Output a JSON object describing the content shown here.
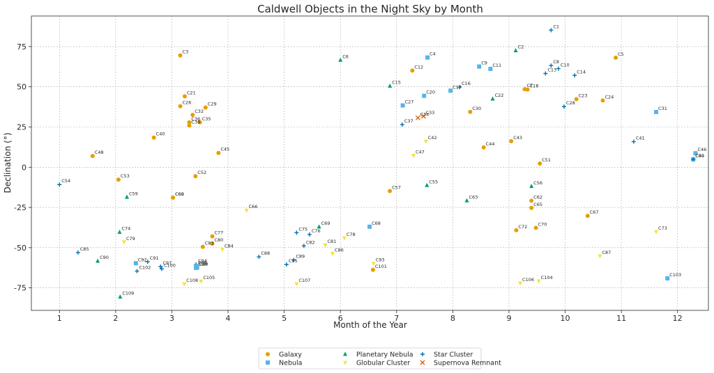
{
  "chart_data": {
    "type": "scatter",
    "title": "Caldwell Objects in the Night Sky by Month",
    "xlabel": "Month of the Year",
    "ylabel": "Declination (°)",
    "xlim": [
      0.5,
      12.55
    ],
    "ylim": [
      -89,
      94
    ],
    "xticks": [
      1,
      2,
      3,
      4,
      5,
      6,
      7,
      8,
      9,
      10,
      11,
      12
    ],
    "yticks": [
      -75,
      -50,
      -25,
      0,
      25,
      50,
      75
    ],
    "grid": true,
    "legend_position": "bottom-center",
    "categories": [
      {
        "name": "Galaxy",
        "marker": "circle",
        "color": "#E69F00"
      },
      {
        "name": "Nebula",
        "marker": "square",
        "color": "#56B4E9"
      },
      {
        "name": "Planetary Nebula",
        "marker": "triangle-up",
        "color": "#009E73"
      },
      {
        "name": "Globular Cluster",
        "marker": "triangle-down",
        "color": "#F0E442"
      },
      {
        "name": "Star Cluster",
        "marker": "plus",
        "color": "#0072B2"
      },
      {
        "name": "Supernova Remnant",
        "marker": "x",
        "color": "#D55E00"
      }
    ],
    "points": [
      {
        "label": "C1",
        "x": 9.75,
        "y": 85.2,
        "type": "Star Cluster"
      },
      {
        "label": "C2",
        "x": 9.12,
        "y": 72.5,
        "type": "Planetary Nebula"
      },
      {
        "label": "C3",
        "x": 3.15,
        "y": 69.5,
        "type": "Galaxy"
      },
      {
        "label": "C4",
        "x": 7.55,
        "y": 68.2,
        "type": "Nebula"
      },
      {
        "label": "C5",
        "x": 10.9,
        "y": 68.1,
        "type": "Galaxy"
      },
      {
        "label": "C6",
        "x": 6.0,
        "y": 66.6,
        "type": "Planetary Nebula"
      },
      {
        "label": "C7",
        "x": 9.28,
        "y": 48.5,
        "type": "Galaxy"
      },
      {
        "label": "C8",
        "x": 9.75,
        "y": 63.2,
        "type": "Star Cluster"
      },
      {
        "label": "C9",
        "x": 8.47,
        "y": 62.6,
        "type": "Nebula"
      },
      {
        "label": "C10",
        "x": 9.88,
        "y": 61.3,
        "type": "Star Cluster"
      },
      {
        "label": "C11",
        "x": 8.67,
        "y": 61.1,
        "type": "Nebula"
      },
      {
        "label": "C12",
        "x": 7.28,
        "y": 60.1,
        "type": "Galaxy"
      },
      {
        "label": "C13",
        "x": 9.65,
        "y": 58.3,
        "type": "Star Cluster"
      },
      {
        "label": "C14",
        "x": 10.17,
        "y": 57.1,
        "type": "Star Cluster"
      },
      {
        "label": "C15",
        "x": 6.88,
        "y": 50.5,
        "type": "Planetary Nebula"
      },
      {
        "label": "C16",
        "x": 8.12,
        "y": 49.8,
        "type": "Star Cluster"
      },
      {
        "label": "C17",
        "x": 7.96,
        "y": 47.6,
        "type": "Nebula"
      },
      {
        "label": "C18",
        "x": 9.33,
        "y": 48.3,
        "type": "Galaxy"
      },
      {
        "label": "C20",
        "x": 7.49,
        "y": 44.4,
        "type": "Nebula"
      },
      {
        "label": "C21",
        "x": 3.23,
        "y": 44.1,
        "type": "Galaxy"
      },
      {
        "label": "C22",
        "x": 8.71,
        "y": 42.5,
        "type": "Planetary Nebula"
      },
      {
        "label": "C23",
        "x": 10.2,
        "y": 42.3,
        "type": "Galaxy"
      },
      {
        "label": "C24",
        "x": 10.67,
        "y": 41.5,
        "type": "Galaxy"
      },
      {
        "label": "C26",
        "x": 3.15,
        "y": 37.9,
        "type": "Galaxy"
      },
      {
        "label": "C27",
        "x": 7.11,
        "y": 38.4,
        "type": "Nebula"
      },
      {
        "label": "C28",
        "x": 9.98,
        "y": 37.7,
        "type": "Star Cluster"
      },
      {
        "label": "C29",
        "x": 3.6,
        "y": 37.1,
        "type": "Galaxy"
      },
      {
        "label": "C30",
        "x": 8.31,
        "y": 34.4,
        "type": "Galaxy"
      },
      {
        "label": "C31",
        "x": 11.62,
        "y": 34.3,
        "type": "Nebula"
      },
      {
        "label": "C32",
        "x": 3.37,
        "y": 32.5,
        "type": "Galaxy"
      },
      {
        "label": "C33",
        "x": 7.48,
        "y": 31.7,
        "type": "Supernova Remnant"
      },
      {
        "label": "C34",
        "x": 7.38,
        "y": 30.7,
        "type": "Supernova Remnant"
      },
      {
        "label": "C35",
        "x": 3.5,
        "y": 27.9,
        "type": "Galaxy"
      },
      {
        "label": "C36",
        "x": 3.31,
        "y": 27.9,
        "type": "Galaxy"
      },
      {
        "label": "C37",
        "x": 7.1,
        "y": 26.5,
        "type": "Star Cluster"
      },
      {
        "label": "C38",
        "x": 3.31,
        "y": 25.9,
        "type": "Galaxy"
      },
      {
        "label": "C40",
        "x": 2.68,
        "y": 18.4,
        "type": "Galaxy"
      },
      {
        "label": "C41",
        "x": 11.22,
        "y": 15.9,
        "type": "Star Cluster"
      },
      {
        "label": "C42",
        "x": 7.52,
        "y": 16.1,
        "type": "Globular Cluster"
      },
      {
        "label": "C43",
        "x": 9.04,
        "y": 16.2,
        "type": "Galaxy"
      },
      {
        "label": "C44",
        "x": 8.55,
        "y": 12.3,
        "type": "Galaxy"
      },
      {
        "label": "C45",
        "x": 3.83,
        "y": 8.9,
        "type": "Galaxy"
      },
      {
        "label": "C46",
        "x": 12.32,
        "y": 8.7,
        "type": "Nebula"
      },
      {
        "label": "C47",
        "x": 7.3,
        "y": 7.3,
        "type": "Globular Cluster"
      },
      {
        "label": "C48",
        "x": 1.59,
        "y": 7.0,
        "type": "Galaxy"
      },
      {
        "label": "C49",
        "x": 12.28,
        "y": 4.9,
        "type": "Nebula"
      },
      {
        "label": "C50",
        "x": 12.28,
        "y": 4.9,
        "type": "Star Cluster"
      },
      {
        "label": "C51",
        "x": 9.55,
        "y": 2.3,
        "type": "Galaxy"
      },
      {
        "label": "C52",
        "x": 3.42,
        "y": -5.6,
        "type": "Galaxy"
      },
      {
        "label": "C53",
        "x": 2.05,
        "y": -7.7,
        "type": "Galaxy"
      },
      {
        "label": "C54",
        "x": 1.0,
        "y": -10.8,
        "type": "Star Cluster"
      },
      {
        "label": "C55",
        "x": 7.54,
        "y": -11.3,
        "type": "Planetary Nebula"
      },
      {
        "label": "C56",
        "x": 9.4,
        "y": -11.9,
        "type": "Planetary Nebula"
      },
      {
        "label": "C57",
        "x": 6.88,
        "y": -14.8,
        "type": "Galaxy"
      },
      {
        "label": "C59",
        "x": 2.2,
        "y": -18.6,
        "type": "Planetary Nebula"
      },
      {
        "label": "C60",
        "x": 3.02,
        "y": -18.9,
        "type": "Galaxy"
      },
      {
        "label": "C61",
        "x": 3.02,
        "y": -18.9,
        "type": "Galaxy"
      },
      {
        "label": "C62",
        "x": 9.4,
        "y": -20.8,
        "type": "Galaxy"
      },
      {
        "label": "C63",
        "x": 8.25,
        "y": -20.8,
        "type": "Planetary Nebula"
      },
      {
        "label": "C65",
        "x": 9.4,
        "y": -25.3,
        "type": "Galaxy"
      },
      {
        "label": "C66",
        "x": 4.33,
        "y": -26.8,
        "type": "Globular Cluster"
      },
      {
        "label": "C67",
        "x": 10.4,
        "y": -30.2,
        "type": "Galaxy"
      },
      {
        "label": "C68",
        "x": 6.52,
        "y": -37.0,
        "type": "Nebula"
      },
      {
        "label": "C69",
        "x": 5.62,
        "y": -37.1,
        "type": "Planetary Nebula"
      },
      {
        "label": "C70",
        "x": 9.48,
        "y": -37.7,
        "type": "Galaxy"
      },
      {
        "label": "C72",
        "x": 9.13,
        "y": -39.2,
        "type": "Galaxy"
      },
      {
        "label": "C73",
        "x": 11.62,
        "y": -40.1,
        "type": "Globular Cluster"
      },
      {
        "label": "C74",
        "x": 2.07,
        "y": -40.4,
        "type": "Planetary Nebula"
      },
      {
        "label": "C75",
        "x": 5.22,
        "y": -40.7,
        "type": "Star Cluster"
      },
      {
        "label": "C76",
        "x": 5.45,
        "y": -41.8,
        "type": "Star Cluster"
      },
      {
        "label": "C77",
        "x": 3.72,
        "y": -43.0,
        "type": "Galaxy"
      },
      {
        "label": "C78",
        "x": 6.07,
        "y": -44.0,
        "type": "Globular Cluster"
      },
      {
        "label": "C79",
        "x": 2.15,
        "y": -46.5,
        "type": "Globular Cluster"
      },
      {
        "label": "C80",
        "x": 3.72,
        "y": -47.5,
        "type": "Galaxy"
      },
      {
        "label": "C81",
        "x": 5.73,
        "y": -48.4,
        "type": "Globular Cluster"
      },
      {
        "label": "C82",
        "x": 5.35,
        "y": -48.9,
        "type": "Star Cluster"
      },
      {
        "label": "C83",
        "x": 3.55,
        "y": -49.5,
        "type": "Galaxy"
      },
      {
        "label": "C84",
        "x": 3.9,
        "y": -51.2,
        "type": "Globular Cluster"
      },
      {
        "label": "C85",
        "x": 1.33,
        "y": -53.0,
        "type": "Star Cluster"
      },
      {
        "label": "C86",
        "x": 5.86,
        "y": -53.7,
        "type": "Globular Cluster"
      },
      {
        "label": "C87",
        "x": 10.62,
        "y": -55.2,
        "type": "Globular Cluster"
      },
      {
        "label": "C88",
        "x": 4.55,
        "y": -55.7,
        "type": "Star Cluster"
      },
      {
        "label": "C89",
        "x": 5.17,
        "y": -57.7,
        "type": "Star Cluster"
      },
      {
        "label": "C90",
        "x": 1.68,
        "y": -58.3,
        "type": "Planetary Nebula"
      },
      {
        "label": "C91",
        "x": 2.57,
        "y": -58.8,
        "type": "Star Cluster"
      },
      {
        "label": "C92",
        "x": 2.36,
        "y": -59.7,
        "type": "Nebula"
      },
      {
        "label": "C93",
        "x": 6.59,
        "y": -59.9,
        "type": "Globular Cluster"
      },
      {
        "label": "C94",
        "x": 3.43,
        "y": -60.5,
        "type": "Star Cluster"
      },
      {
        "label": "C95",
        "x": 5.04,
        "y": -60.5,
        "type": "Star Cluster"
      },
      {
        "label": "C96",
        "x": 3.43,
        "y": -61.6,
        "type": "Nebula"
      },
      {
        "label": "C97",
        "x": 2.8,
        "y": -61.8,
        "type": "Star Cluster"
      },
      {
        "label": "C98",
        "x": 3.43,
        "y": -62.6,
        "type": "Nebula"
      },
      {
        "label": "C99",
        "x": 3.45,
        "y": -62.3,
        "type": "Nebula"
      },
      {
        "label": "C100",
        "x": 2.82,
        "y": -63.2,
        "type": "Star Cluster"
      },
      {
        "label": "C101",
        "x": 6.58,
        "y": -63.8,
        "type": "Galaxy"
      },
      {
        "label": "C102",
        "x": 2.38,
        "y": -64.6,
        "type": "Star Cluster"
      },
      {
        "label": "C103",
        "x": 11.82,
        "y": -69.1,
        "type": "Nebula"
      },
      {
        "label": "C104",
        "x": 9.53,
        "y": -70.8,
        "type": "Globular Cluster"
      },
      {
        "label": "C105",
        "x": 3.52,
        "y": -70.9,
        "type": "Globular Cluster"
      },
      {
        "label": "C106",
        "x": 9.2,
        "y": -72.1,
        "type": "Globular Cluster"
      },
      {
        "label": "C107",
        "x": 5.22,
        "y": -72.5,
        "type": "Globular Cluster"
      },
      {
        "label": "C108",
        "x": 3.22,
        "y": -72.5,
        "type": "Globular Cluster"
      },
      {
        "label": "C109",
        "x": 2.08,
        "y": -80.6,
        "type": "Planetary Nebula"
      }
    ]
  }
}
